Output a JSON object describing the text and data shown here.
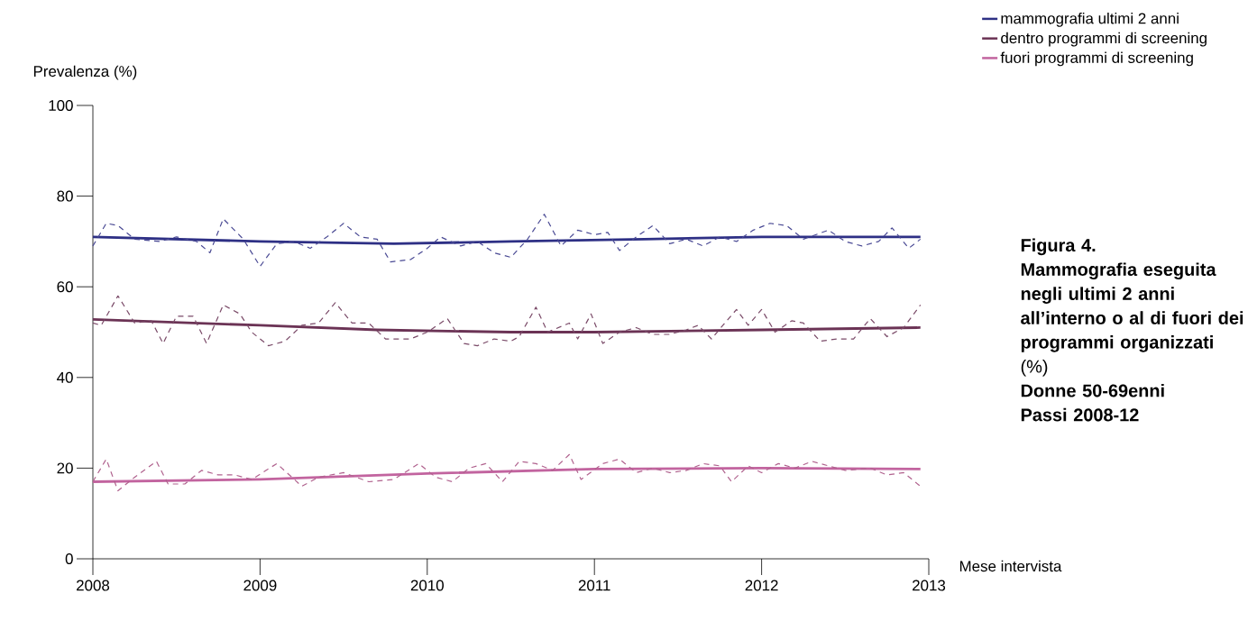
{
  "chart_data": {
    "type": "line",
    "title": "Figura 4.",
    "subtitle": "**Mammografia eseguita negli ultimi 2 anni all’interno o al di fuori dei programmi organizzati** (%)",
    "annotations": [
      "Donne 50-69enni",
      "Passi 2008-12"
    ],
    "xlabel": "Mese intervista",
    "ylabel": "Prevalenza (%)",
    "xlim": [
      2008,
      2013
    ],
    "xticks": [
      2008,
      2009,
      2010,
      2011,
      2012,
      2013
    ],
    "ylim": [
      0,
      100
    ],
    "yticks": [
      0,
      20,
      40,
      60,
      80,
      100
    ],
    "legend": "top right",
    "grid": false,
    "marker": "none",
    "series": [
      {
        "name": "mammografia ultimi 2 anni",
        "color": "#2e3085",
        "line_style": "solid",
        "x": [
          2008,
          2009,
          2009.8,
          2010.5,
          2011.3,
          2012,
          2012.95
        ],
        "values": [
          71,
          70,
          69.5,
          70,
          70.5,
          71,
          71
        ]
      },
      {
        "name": "dentro programmi di screening",
        "color": "#6b3355",
        "line_style": "solid",
        "x": [
          2008,
          2009,
          2009.7,
          2010.5,
          2011,
          2012,
          2012.95
        ],
        "values": [
          52.8,
          51.5,
          50.5,
          50,
          50,
          50.5,
          51
        ]
      },
      {
        "name": "fuori programmi di screening",
        "color": "#c2649f",
        "line_style": "solid",
        "x": [
          2008,
          2009,
          2010,
          2011,
          2012,
          2012.95
        ],
        "values": [
          17,
          17.5,
          18.8,
          19.8,
          20,
          19.8
        ]
      },
      {
        "color": "#4a4a94",
        "line_style": "dashed",
        "x": [
          2008.0,
          2008.08,
          2008.15,
          2008.25,
          2008.4,
          2008.5,
          2008.62,
          2008.7,
          2008.78,
          2008.9,
          2009.0,
          2009.1,
          2009.2,
          2009.3,
          2009.4,
          2009.5,
          2009.6,
          2009.7,
          2009.78,
          2009.9,
          2010.0,
          2010.08,
          2010.2,
          2010.3,
          2010.4,
          2010.5,
          2010.6,
          2010.7,
          2010.8,
          2010.9,
          2011.0,
          2011.08,
          2011.15,
          2011.25,
          2011.35,
          2011.45,
          2011.55,
          2011.65,
          2011.75,
          2011.85,
          2011.95,
          2012.05,
          2012.15,
          2012.25,
          2012.4,
          2012.5,
          2012.6,
          2012.7,
          2012.78,
          2012.88,
          2012.95
        ],
        "values": [
          69,
          74,
          73.5,
          70.5,
          70,
          71,
          70,
          67.5,
          75,
          70.5,
          64.5,
          69.5,
          70,
          68.5,
          71,
          74,
          71,
          70.5,
          65.5,
          66,
          68.5,
          71,
          69,
          70,
          67.5,
          66.5,
          70.5,
          76,
          69,
          72.5,
          71.5,
          72,
          68,
          71,
          73.5,
          69.5,
          70.5,
          69,
          71,
          70,
          72.5,
          74,
          73.5,
          70.5,
          72.5,
          70,
          69,
          70,
          73,
          68.5,
          70.5
        ]
      },
      {
        "color": "#7a4a68",
        "line_style": "dashed",
        "x": [
          2008.0,
          2008.05,
          2008.15,
          2008.25,
          2008.35,
          2008.42,
          2008.5,
          2008.6,
          2008.68,
          2008.78,
          2008.88,
          2008.95,
          2009.05,
          2009.15,
          2009.25,
          2009.35,
          2009.45,
          2009.55,
          2009.65,
          2009.75,
          2009.9,
          2010.0,
          2010.12,
          2010.22,
          2010.3,
          2010.4,
          2010.5,
          2010.55,
          2010.65,
          2010.72,
          2010.85,
          2010.9,
          2010.98,
          2011.05,
          2011.15,
          2011.25,
          2011.35,
          2011.45,
          2011.55,
          2011.62,
          2011.7,
          2011.78,
          2011.85,
          2011.92,
          2012.0,
          2012.08,
          2012.18,
          2012.25,
          2012.35,
          2012.45,
          2012.55,
          2012.65,
          2012.75,
          2012.85,
          2012.95
        ],
        "values": [
          52,
          51.5,
          58,
          52,
          52.5,
          47.5,
          53.5,
          53.5,
          47.5,
          56,
          54,
          50,
          47,
          48,
          51.5,
          52,
          56.5,
          52,
          52,
          48.5,
          48.5,
          50,
          53,
          47.5,
          47,
          48.5,
          48,
          49,
          55.5,
          50,
          52,
          48.5,
          54,
          47.5,
          50,
          51,
          49.5,
          49.5,
          50.5,
          51.5,
          48.5,
          52,
          55,
          51.5,
          55,
          50,
          52.5,
          52,
          48,
          48.5,
          48.5,
          53,
          49,
          51,
          56
        ]
      },
      {
        "color": "#b0628e",
        "line_style": "dashed",
        "x": [
          2008.0,
          2008.08,
          2008.15,
          2008.25,
          2008.38,
          2008.45,
          2008.55,
          2008.65,
          2008.75,
          2008.85,
          2008.95,
          2009.1,
          2009.25,
          2009.35,
          2009.5,
          2009.65,
          2009.8,
          2009.95,
          2010.05,
          2010.15,
          2010.25,
          2010.35,
          2010.45,
          2010.55,
          2010.65,
          2010.75,
          2010.85,
          2010.92,
          2011.05,
          2011.15,
          2011.25,
          2011.35,
          2011.45,
          2011.55,
          2011.65,
          2011.75,
          2011.82,
          2011.92,
          2012.0,
          2012.1,
          2012.2,
          2012.3,
          2012.4,
          2012.5,
          2012.65,
          2012.75,
          2012.85,
          2012.95
        ],
        "values": [
          17,
          22,
          15,
          18,
          21.5,
          16.5,
          16.5,
          19.5,
          18.5,
          18.5,
          17.5,
          21,
          16,
          18,
          19,
          17,
          17.5,
          21,
          18,
          17,
          20,
          21,
          17,
          21.5,
          21,
          19.5,
          23,
          17.5,
          21,
          22,
          19,
          20,
          19,
          19.5,
          21,
          20.5,
          17,
          20.5,
          19,
          21,
          20,
          21.5,
          20.5,
          19.5,
          20,
          18.5,
          19,
          16
        ]
      }
    ]
  }
}
